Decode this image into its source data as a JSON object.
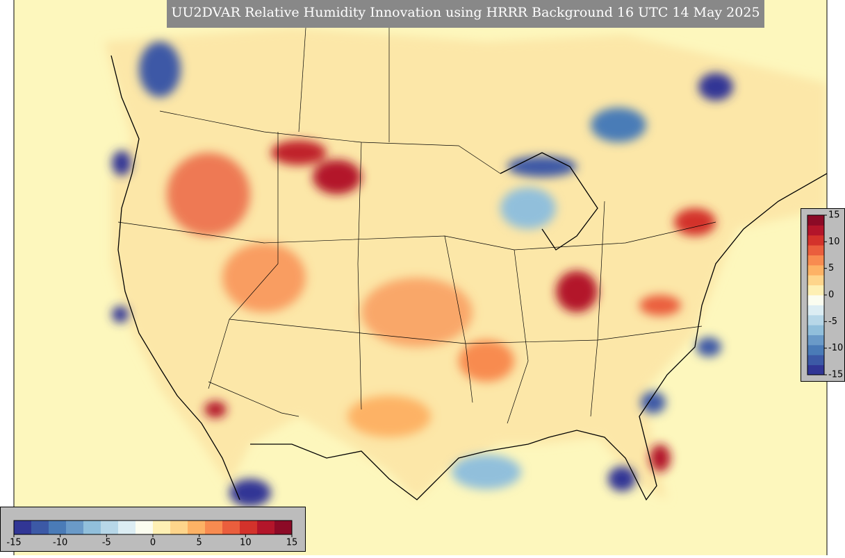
{
  "title": "UU2DVAR Relative Humidity Innovation using HRRR Background 16 UTC 14 May 2025",
  "colormap": [
    "#313695",
    "#3c59a6",
    "#4a7bb7",
    "#6a9ac8",
    "#91bfdb",
    "#b7d7e8",
    "#dcedf3",
    "#fbfdf0",
    "#fef0b4",
    "#fed58b",
    "#fdb265",
    "#f88b50",
    "#ea5e3d",
    "#d3322b",
    "#b3152a",
    "#8c0a26"
  ],
  "colorbars": [
    {
      "orientation": "horizontal",
      "lim": [
        -15,
        15
      ],
      "ticks": [
        -15,
        -10,
        -5,
        0,
        5,
        10,
        15
      ]
    },
    {
      "orientation": "vertical",
      "lim": [
        -15,
        15
      ],
      "ticks": [
        15,
        10,
        5,
        0,
        -5,
        -10,
        -15
      ]
    }
  ]
}
